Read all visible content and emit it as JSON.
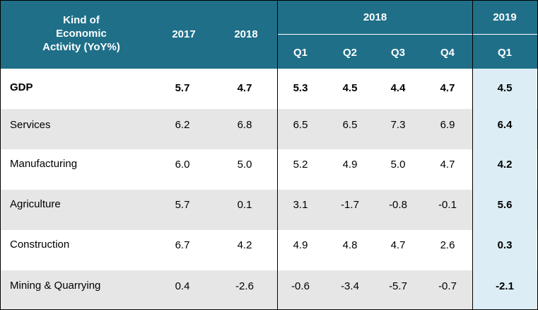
{
  "header": {
    "activity_label": "Kind of\nEconomic\nActivity (YoY%)",
    "year_2017": "2017",
    "year_2018": "2018",
    "group_2018": "2018",
    "group_2019": "2019",
    "quarters_2018": [
      "Q1",
      "Q2",
      "Q3",
      "Q4"
    ],
    "quarter_2019": "Q1"
  },
  "rows": [
    {
      "name": "GDP",
      "y2017": "5.7",
      "y2018": "4.7",
      "q1": "5.3",
      "q2": "4.5",
      "q3": "4.4",
      "q4": "4.7",
      "q2019": "4.5"
    },
    {
      "name": "Services",
      "y2017": "6.2",
      "y2018": "6.8",
      "q1": "6.5",
      "q2": "6.5",
      "q3": "7.3",
      "q4": "6.9",
      "q2019": "6.4"
    },
    {
      "name": "Manufacturing",
      "y2017": "6.0",
      "y2018": "5.0",
      "q1": "5.2",
      "q2": "4.9",
      "q3": "5.0",
      "q4": "4.7",
      "q2019": "4.2"
    },
    {
      "name": "Agriculture",
      "y2017": "5.7",
      "y2018": "0.1",
      "q1": "3.1",
      "q2": "-1.7",
      "q3": "-0.8",
      "q4": "-0.1",
      "q2019": "5.6"
    },
    {
      "name": "Construction",
      "y2017": "6.7",
      "y2018": "4.2",
      "q1": "4.9",
      "q2": "4.8",
      "q3": "4.7",
      "q4": "2.6",
      "q2019": "0.3"
    },
    {
      "name": "Mining & Quarrying",
      "y2017": "0.4",
      "y2018": "-2.6",
      "q1": "-0.6",
      "q2": "-3.4",
      "q3": "-5.7",
      "q4": "-0.7",
      "q2019": "-2.1"
    }
  ],
  "colors": {
    "header_bg": "#1f6f89",
    "shaded_row": "#e6e6e6",
    "highlight_col": "#dcedf6"
  }
}
